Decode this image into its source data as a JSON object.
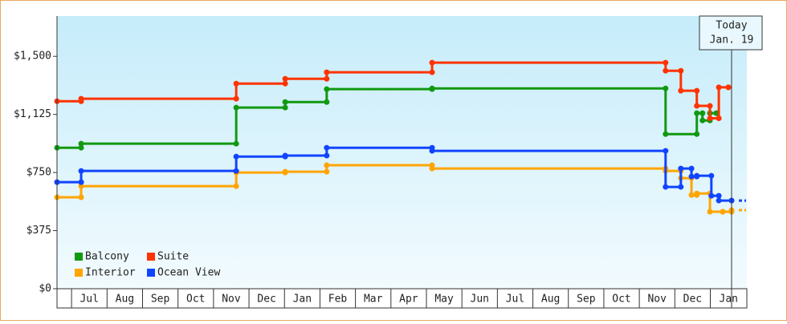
{
  "chart_data": {
    "type": "step-line",
    "categories": [
      null,
      "Jul",
      "Aug",
      "Sep",
      "Oct",
      "Nov",
      "Dec",
      "Jan",
      "Feb",
      "Mar",
      "Apr",
      "May",
      "Jun",
      "Jul",
      "Aug",
      "Sep",
      "Oct",
      "Nov",
      "Dec",
      "Jan"
    ],
    "xlim": [
      -0.41,
      19.03
    ],
    "ylim": [
      0,
      1760
    ],
    "yticks": [
      {
        "value": 0,
        "label": "$0"
      },
      {
        "value": 375,
        "label": "$375"
      },
      {
        "value": 750,
        "label": "$750"
      },
      {
        "value": 1125,
        "label": "$1,125"
      },
      {
        "value": 1500,
        "label": "$1,500"
      }
    ],
    "today": {
      "x": 18.6,
      "label": "Today",
      "date": "Jan. 19"
    },
    "legend": "bottom-left",
    "series": [
      {
        "name": "Balcony",
        "color": "#119911",
        "projected": false,
        "x": [
          -0.41,
          0.27,
          4.64,
          6.02,
          7.19,
          10.16,
          16.74,
          17.62,
          17.78,
          17.99,
          18.17
        ],
        "values": [
          910,
          936,
          1169,
          1205,
          1288,
          1293,
          998,
          1133,
          1086,
          1133,
          1133
        ]
      },
      {
        "name": "Suite",
        "color": "#ff3300",
        "projected": false,
        "x": [
          -0.41,
          0.27,
          4.64,
          6.02,
          7.19,
          10.16,
          16.74,
          17.17,
          17.62,
          17.99,
          18.24,
          18.51
        ],
        "values": [
          1210,
          1226,
          1324,
          1355,
          1397,
          1459,
          1407,
          1278,
          1180,
          1100,
          1300,
          1300
        ]
      },
      {
        "name": "Interior",
        "color": "#ffa500",
        "projected": true,
        "x": [
          -0.41,
          0.27,
          4.64,
          6.02,
          7.19,
          10.16,
          16.74,
          17.17,
          17.47,
          17.62,
          17.99,
          18.35,
          18.6
        ],
        "values": [
          590,
          662,
          750,
          755,
          797,
          776,
          760,
          714,
          605,
          615,
          497,
          497,
          507
        ]
      },
      {
        "name": "Ocean View",
        "color": "#1144ff",
        "projected": true,
        "x": [
          -0.41,
          0.27,
          4.64,
          6.02,
          7.19,
          10.16,
          16.74,
          17.17,
          17.47,
          17.62,
          18.03,
          18.24,
          18.6
        ],
        "values": [
          688,
          760,
          853,
          859,
          910,
          890,
          657,
          776,
          724,
          729,
          600,
          569,
          569
        ]
      }
    ]
  }
}
